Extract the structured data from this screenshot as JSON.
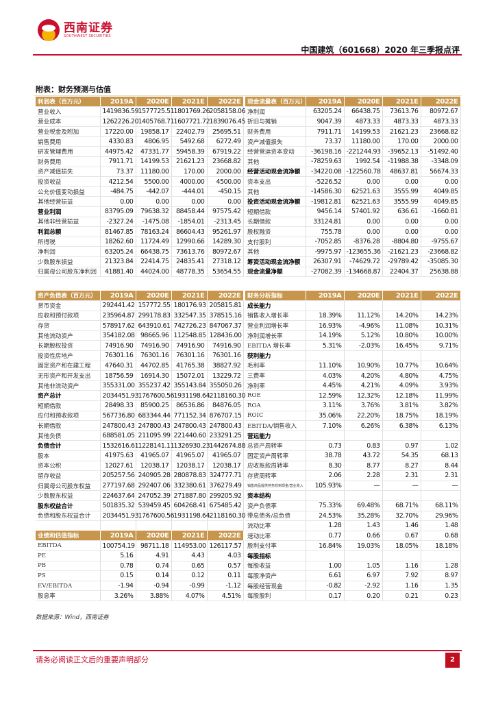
{
  "header": {
    "logo_cn": "西南证券",
    "logo_en": "SOUTHWEST SECURITIES",
    "title": "中国建筑（601668）2020 年三季报点评"
  },
  "section_title": "附表：财务预测与估值",
  "colors": {
    "header_bg": "#c7964c",
    "brand_red": "#c8102e"
  },
  "tables": [
    {
      "headers": [
        "利润表（百万元）",
        "2019A",
        "2020E",
        "2021E",
        "2022E"
      ],
      "rows": [
        {
          "label": "营业收入",
          "values": [
            "1419836.59",
            "1577725.51",
            "1801769.26",
            "2058158.06"
          ]
        },
        {
          "label": "营业成本",
          "values": [
            "1262226.20",
            "1405768.71",
            "1607721.72",
            "1839076.45"
          ]
        },
        {
          "label": "营业税金及附加",
          "values": [
            "17220.00",
            "19858.17",
            "22402.79",
            "25695.51"
          ]
        },
        {
          "label": "销售费用",
          "values": [
            "4330.83",
            "4806.95",
            "5492.68",
            "6272.49"
          ]
        },
        {
          "label": "研发管理费用",
          "values": [
            "44975.42",
            "47331.77",
            "59458.39",
            "67919.22"
          ]
        },
        {
          "label": "财务费用",
          "values": [
            "7911.71",
            "14199.53",
            "21621.23",
            "23668.82"
          ]
        },
        {
          "label": "资产减值损失",
          "values": [
            "73.37",
            "11180.00",
            "170.00",
            "2000.00"
          ]
        },
        {
          "label": "投资收益",
          "values": [
            "4212.54",
            "5500.00",
            "4000.00",
            "4500.00"
          ]
        },
        {
          "label": "公允价值变动损益",
          "values": [
            "-484.75",
            "-442.07",
            "-444.01",
            "-450.15"
          ]
        },
        {
          "label": "其他经营损益",
          "values": [
            "0.00",
            "0.00",
            "0.00",
            "0.00"
          ]
        },
        {
          "label": "营业利润",
          "bold": true,
          "values": [
            "83795.09",
            "79638.32",
            "88458.44",
            "97575.42"
          ]
        },
        {
          "label": "其他非经营损益",
          "values": [
            "-2327.24",
            "-1475.08",
            "-1854.01",
            "-2313.45"
          ]
        },
        {
          "label": "利润总额",
          "bold": true,
          "values": [
            "81467.85",
            "78163.24",
            "86604.43",
            "95261.97"
          ]
        },
        {
          "label": "所得税",
          "values": [
            "18262.60",
            "11724.49",
            "12990.66",
            "14289.30"
          ]
        },
        {
          "label": "净利润",
          "values": [
            "63205.24",
            "66438.75",
            "73613.76",
            "80972.67"
          ]
        },
        {
          "label": "少数股东损益",
          "values": [
            "21323.84",
            "22414.75",
            "24835.41",
            "27318.12"
          ]
        },
        {
          "label": "归属母公司股东净利润",
          "values": [
            "41881.40",
            "44024.00",
            "48778.35",
            "53654.55"
          ]
        }
      ]
    },
    {
      "headers": [
        "现金流量表（百万元）",
        "2019A",
        "2020E",
        "2021E",
        "2022E"
      ],
      "rows": [
        {
          "label": "净利润",
          "values": [
            "63205.24",
            "66438.75",
            "73613.76",
            "80972.67"
          ]
        },
        {
          "label": "折旧与摊销",
          "values": [
            "9047.39",
            "4873.33",
            "4873.33",
            "4873.33"
          ]
        },
        {
          "label": "财务费用",
          "values": [
            "7911.71",
            "14199.53",
            "21621.23",
            "23668.82"
          ]
        },
        {
          "label": "资产减值损失",
          "values": [
            "73.37",
            "11180.00",
            "170.00",
            "2000.00"
          ]
        },
        {
          "label": "经营营运资本变动",
          "values": [
            "-36198.16",
            "-221244.93",
            "-39652.13",
            "-51492.40"
          ]
        },
        {
          "label": "其他",
          "values": [
            "-78259.63",
            "1992.54",
            "-11988.38",
            "-3348.09"
          ]
        },
        {
          "label": "经营活动现金流净额",
          "bold": true,
          "values": [
            "-34220.08",
            "-122560.78",
            "48637.81",
            "56674.33"
          ]
        },
        {
          "label": "资本支出",
          "values": [
            "-5226.52",
            "0.00",
            "0.00",
            "0.00"
          ]
        },
        {
          "label": "其他",
          "values": [
            "-14586.30",
            "62521.63",
            "3555.99",
            "4049.85"
          ]
        },
        {
          "label": "投资活动现金流净额",
          "bold": true,
          "values": [
            "-19812.81",
            "62521.63",
            "3555.99",
            "4049.85"
          ]
        },
        {
          "label": "短期借款",
          "values": [
            "9456.14",
            "57401.92",
            "636.61",
            "-1660.81"
          ]
        },
        {
          "label": "长期借款",
          "values": [
            "33124.81",
            "0.00",
            "0.00",
            "0.00"
          ]
        },
        {
          "label": "股权融资",
          "values": [
            "755.78",
            "0.00",
            "0.00",
            "0.00"
          ]
        },
        {
          "label": "支付股利",
          "values": [
            "-7052.85",
            "-8376.28",
            "-8804.80",
            "-9755.67"
          ]
        },
        {
          "label": "其他",
          "values": [
            "-9975.97",
            "-123655.36",
            "-21621.23",
            "-23668.82"
          ]
        },
        {
          "label": "筹资活动现金流净额",
          "bold": true,
          "values": [
            "26307.91",
            "-74629.72",
            "-29789.42",
            "-35085.30"
          ]
        },
        {
          "label": "现金流量净额",
          "bold": true,
          "values": [
            "-27082.39",
            "-134668.87",
            "22404.37",
            "25638.88"
          ]
        }
      ]
    },
    {
      "headers": [
        "资产负债表（百万元）",
        "2019A",
        "2020E",
        "2021E",
        "2022E"
      ],
      "rows": [
        {
          "label": "货币资金",
          "values": [
            "292441.42",
            "157772.55",
            "180176.93",
            "205815.81"
          ]
        },
        {
          "label": "应收和预付款项",
          "values": [
            "235964.87",
            "299178.83",
            "332547.35",
            "378515.16"
          ]
        },
        {
          "label": "存货",
          "values": [
            "578917.62",
            "643910.61",
            "742726.23",
            "847067.37"
          ]
        },
        {
          "label": "其他流动资产",
          "values": [
            "354182.08",
            "98665.96",
            "112548.85",
            "128436.00"
          ]
        },
        {
          "label": "长期股权投资",
          "values": [
            "74916.90",
            "74916.90",
            "74916.90",
            "74916.90"
          ]
        },
        {
          "label": "投资性房地产",
          "values": [
            "76301.16",
            "76301.16",
            "76301.16",
            "76301.16"
          ]
        },
        {
          "label": "固定资产和在建工程",
          "values": [
            "47640.31",
            "44702.85",
            "41765.38",
            "38827.92"
          ]
        },
        {
          "label": "无形资产和开发支出",
          "values": [
            "18756.59",
            "16914.30",
            "15072.01",
            "13229.72"
          ]
        },
        {
          "label": "其他非流动资产",
          "values": [
            "355331.00",
            "355237.42",
            "355143.84",
            "355050.26"
          ]
        },
        {
          "label": "资产总计",
          "bold": true,
          "values": [
            "2034451.93",
            "1767600.56",
            "1931198.64",
            "2118160.30"
          ]
        },
        {
          "label": "短期借款",
          "values": [
            "28498.33",
            "85900.25",
            "86536.86",
            "84876.05"
          ]
        },
        {
          "label": "应付和预收款项",
          "values": [
            "567736.80",
            "683344.44",
            "771152.34",
            "876707.15"
          ]
        },
        {
          "label": "长期借款",
          "values": [
            "247800.43",
            "247800.43",
            "247800.43",
            "247800.43"
          ]
        },
        {
          "label": "其他负债",
          "values": [
            "688581.05",
            "211095.99",
            "221440.60",
            "233291.25"
          ]
        },
        {
          "label": "负债合计",
          "bold": true,
          "values": [
            "1532616.61",
            "1228141.11",
            "1326930.23",
            "1442674.88"
          ]
        },
        {
          "label": "股本",
          "values": [
            "41975.63",
            "41965.07",
            "41965.07",
            "41965.07"
          ]
        },
        {
          "label": "资本公积",
          "values": [
            "12027.61",
            "12038.17",
            "12038.17",
            "12038.17"
          ]
        },
        {
          "label": "留存收益",
          "values": [
            "205257.56",
            "240905.28",
            "280878.83",
            "324777.71"
          ]
        },
        {
          "label": "归属母公司股东权益",
          "values": [
            "277197.68",
            "292407.06",
            "332380.61",
            "376279.49"
          ]
        },
        {
          "label": "少数股东权益",
          "values": [
            "224637.64",
            "247052.39",
            "271887.80",
            "299205.92"
          ]
        },
        {
          "label": "股东权益合计",
          "bold": true,
          "values": [
            "501835.32",
            "539459.45",
            "604268.41",
            "675485.42"
          ]
        },
        {
          "label": "负债和股东权益合计",
          "values": [
            "2034451.93",
            "1767600.56",
            "1931198.64",
            "2118160.30"
          ]
        },
        {
          "blank": true
        },
        {
          "header": true,
          "label": "业绩和估值指标",
          "values": [
            "2019A",
            "2020E",
            "2021E",
            "2022E"
          ]
        },
        {
          "label": "EBITDA",
          "values": [
            "100754.19",
            "98711.18",
            "114953.00",
            "126117.57"
          ]
        },
        {
          "label": "PE",
          "values": [
            "5.16",
            "4.91",
            "4.43",
            "4.03"
          ]
        },
        {
          "label": "PB",
          "values": [
            "0.78",
            "0.74",
            "0.65",
            "0.57"
          ]
        },
        {
          "label": "PS",
          "values": [
            "0.15",
            "0.14",
            "0.12",
            "0.11"
          ]
        },
        {
          "label": "EV/EBITDA",
          "values": [
            "-1.94",
            "-0.94",
            "-0.99",
            "-1.12"
          ]
        },
        {
          "label": "股息率",
          "values": [
            "3.26%",
            "3.88%",
            "4.07%",
            "4.51%"
          ]
        }
      ]
    },
    {
      "headers": [
        "财务分析指标",
        "2019A",
        "2020E",
        "2021E",
        "2022E"
      ],
      "rows": [
        {
          "label": "成长能力",
          "bold": true,
          "values": [
            "",
            "",
            "",
            ""
          ]
        },
        {
          "label": "销售收入增长率",
          "values": [
            "18.39%",
            "11.12%",
            "14.20%",
            "14.23%"
          ]
        },
        {
          "label": "营业利润增长率",
          "values": [
            "16.93%",
            "-4.96%",
            "11.08%",
            "10.31%"
          ]
        },
        {
          "label": "净利润增长率",
          "values": [
            "14.19%",
            "5.12%",
            "10.80%",
            "10.00%"
          ]
        },
        {
          "label": "EBITDA 增长率",
          "values": [
            "5.31%",
            "-2.03%",
            "16.45%",
            "9.71%"
          ]
        },
        {
          "label": "获利能力",
          "bold": true,
          "values": [
            "",
            "",
            "",
            ""
          ]
        },
        {
          "label": "毛利率",
          "values": [
            "11.10%",
            "10.90%",
            "10.77%",
            "10.64%"
          ]
        },
        {
          "label": "三费率",
          "values": [
            "4.03%",
            "4.20%",
            "4.80%",
            "4.75%"
          ]
        },
        {
          "label": "净利率",
          "values": [
            "4.45%",
            "4.21%",
            "4.09%",
            "3.93%"
          ]
        },
        {
          "label": "ROE",
          "values": [
            "12.59%",
            "12.32%",
            "12.18%",
            "11.99%"
          ]
        },
        {
          "label": "ROA",
          "values": [
            "3.11%",
            "3.76%",
            "3.81%",
            "3.82%"
          ]
        },
        {
          "label": "ROIC",
          "values": [
            "35.06%",
            "22.20%",
            "18.75%",
            "18.19%"
          ]
        },
        {
          "label": "EBITDA/销售收入",
          "values": [
            "7.10%",
            "6.26%",
            "6.38%",
            "6.13%"
          ]
        },
        {
          "label": "营运能力",
          "bold": true,
          "values": [
            "",
            "",
            "",
            ""
          ]
        },
        {
          "label": "总资产周转率",
          "values": [
            "0.73",
            "0.83",
            "0.97",
            "1.02"
          ]
        },
        {
          "label": "固定资产周转率",
          "values": [
            "38.78",
            "43.72",
            "54.35",
            "68.13"
          ]
        },
        {
          "label": "应收账款周转率",
          "values": [
            "8.30",
            "8.77",
            "8.27",
            "8.44"
          ]
        },
        {
          "label": "存货周转率",
          "values": [
            "2.06",
            "2.28",
            "2.31",
            "2.31"
          ]
        },
        {
          "label": "销售商品提供劳务收到现金/营业收入",
          "small": true,
          "values": [
            "105.93%",
            "—",
            "—",
            "—"
          ]
        },
        {
          "label": "资本结构",
          "bold": true,
          "values": [
            "",
            "",
            "",
            ""
          ]
        },
        {
          "label": "资产负债率",
          "values": [
            "75.33%",
            "69.48%",
            "68.71%",
            "68.11%"
          ]
        },
        {
          "label": "带息债务/总负债",
          "values": [
            "24.53%",
            "35.28%",
            "32.70%",
            "29.96%"
          ]
        },
        {
          "label": "流动比率",
          "values": [
            "1.28",
            "1.43",
            "1.46",
            "1.48"
          ]
        },
        {
          "label": "速动比率",
          "values": [
            "0.77",
            "0.66",
            "0.67",
            "0.68"
          ]
        },
        {
          "label": "股利支付率",
          "values": [
            "16.84%",
            "19.03%",
            "18.05%",
            "18.18%"
          ]
        },
        {
          "label": "每股指标",
          "bold": true,
          "values": [
            "",
            "",
            "",
            ""
          ]
        },
        {
          "label": "每股收益",
          "values": [
            "1.00",
            "1.05",
            "1.16",
            "1.28"
          ]
        },
        {
          "label": "每股净资产",
          "values": [
            "6.61",
            "6.97",
            "7.92",
            "8.97"
          ]
        },
        {
          "label": "每股经营现金",
          "values": [
            "-0.82",
            "-2.92",
            "1.16",
            "1.35"
          ]
        },
        {
          "label": "每股股利",
          "values": [
            "0.17",
            "0.20",
            "0.21",
            "0.23"
          ]
        }
      ]
    }
  ],
  "source": "数据来源：Wind，西南证券",
  "footer": {
    "disclaimer": "请务必阅读正文后的重要声明部分",
    "page": "2"
  }
}
